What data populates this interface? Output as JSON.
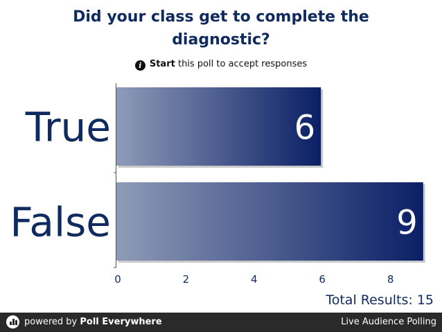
{
  "poll": {
    "question": "Did your class get to complete the diagnostic?",
    "notice_bold": "Start",
    "notice_rest": "this poll to accept responses",
    "total_label": "Total Results: 15"
  },
  "footer": {
    "powered_prefix": "powered by",
    "brand": "Poll Everywhere",
    "tagline": "Live Audience Polling"
  },
  "icons": {
    "info": "info-icon",
    "logo": "poll-everywhere-logo-icon"
  },
  "colors": {
    "bar_dark": "#0a1f66",
    "bar_light": "#8f9bb8",
    "text": "#0f2a5e",
    "footer_bg": "#2a2a2a"
  },
  "chart_data": {
    "type": "bar",
    "orientation": "horizontal",
    "categories": [
      "True",
      "False"
    ],
    "values": [
      6,
      9
    ],
    "xlim": [
      0,
      9
    ],
    "xticks": [
      0,
      2,
      4,
      6,
      8
    ],
    "grid": false,
    "legend": "none"
  }
}
